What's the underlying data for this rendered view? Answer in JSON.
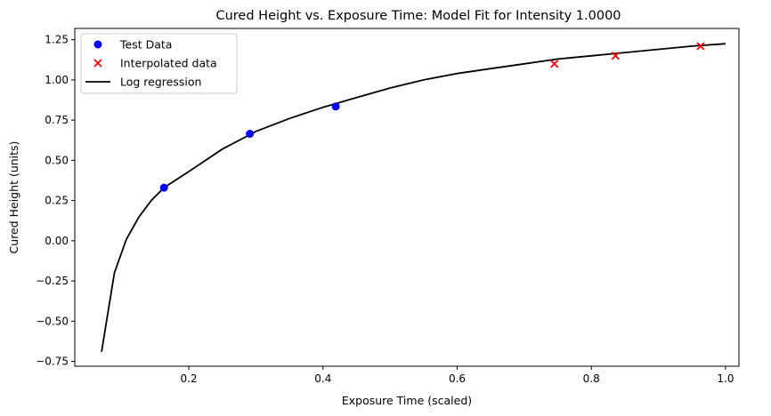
{
  "chart_data": {
    "type": "line",
    "title": "Cured Height vs. Exposure Time: Model Fit for Intensity 1.0000",
    "xlabel": "Exposure Time (scaled)",
    "ylabel": "Cured Height (units)",
    "xlim": [
      0.03,
      1.02
    ],
    "ylim": [
      -0.78,
      1.32
    ],
    "xticks": [
      0.2,
      0.4,
      0.6,
      0.8,
      1.0
    ],
    "xtick_labels": [
      "0.2",
      "0.4",
      "0.6",
      "0.8",
      "1.0"
    ],
    "yticks": [
      -0.75,
      -0.5,
      -0.25,
      0.0,
      0.25,
      0.5,
      0.75,
      1.0,
      1.25
    ],
    "ytick_labels": [
      "−0.75",
      "−0.50",
      "−0.25",
      "0.00",
      "0.25",
      "0.50",
      "0.75",
      "1.00",
      "1.25"
    ],
    "grid": false,
    "legend_position": "top-left",
    "series": [
      {
        "name": "Test Data",
        "kind": "scatter",
        "marker": "circle",
        "color": "#0000ff",
        "x": [
          0.163,
          0.291,
          0.419
        ],
        "y": [
          0.33,
          0.665,
          0.835
        ]
      },
      {
        "name": "Interpolated data",
        "kind": "scatter",
        "marker": "x",
        "color": "#ff0000",
        "x": [
          0.745,
          0.836,
          0.963
        ],
        "y": [
          1.1,
          1.15,
          1.21
        ]
      },
      {
        "name": "Log regression",
        "kind": "line",
        "color": "#000000",
        "x": [
          0.07,
          0.089,
          0.107,
          0.126,
          0.144,
          0.163,
          0.2,
          0.25,
          0.3,
          0.35,
          0.4,
          0.45,
          0.5,
          0.55,
          0.6,
          0.65,
          0.7,
          0.75,
          0.8,
          0.85,
          0.9,
          0.95,
          1.0
        ],
        "y": [
          -0.69,
          -0.2,
          0.01,
          0.15,
          0.25,
          0.33,
          0.43,
          0.57,
          0.68,
          0.76,
          0.83,
          0.89,
          0.95,
          1.0,
          1.04,
          1.07,
          1.1,
          1.13,
          1.15,
          1.17,
          1.19,
          1.21,
          1.225
        ]
      }
    ]
  }
}
